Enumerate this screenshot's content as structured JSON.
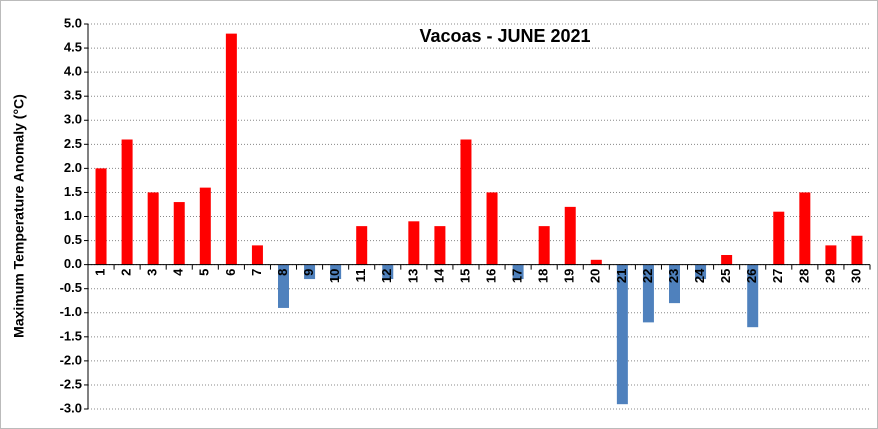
{
  "chart_data": {
    "type": "bar",
    "title": "Vacoas - JUNE 2021",
    "y_label": "Maximum  Temperature Anomaly (°C)",
    "categories": [
      "1",
      "2",
      "3",
      "4",
      "5",
      "6",
      "7",
      "8",
      "9",
      "10",
      "11",
      "12",
      "13",
      "14",
      "15",
      "16",
      "17",
      "18",
      "19",
      "20",
      "21",
      "22",
      "23",
      "24",
      "25",
      "26",
      "27",
      "28",
      "29",
      "30"
    ],
    "values": [
      2.0,
      2.6,
      1.5,
      1.3,
      1.6,
      4.8,
      0.4,
      -0.9,
      -0.3,
      -0.3,
      0.8,
      -0.3,
      0.9,
      0.8,
      2.6,
      1.5,
      -0.3,
      0.8,
      1.2,
      0.1,
      -2.9,
      -1.2,
      -0.8,
      -0.3,
      0.2,
      -1.3,
      1.1,
      1.5,
      0.4,
      0.6
    ],
    "positive_color": "#ff0000",
    "negative_color": "#4f81bd",
    "ylim": [
      -3,
      5
    ],
    "yticks": [
      {
        "value": 5,
        "label": "5.0"
      },
      4.5,
      {
        "value": 4,
        "label": "4.0"
      },
      3.5,
      {
        "value": 3,
        "label": "3.0"
      },
      2.5,
      {
        "value": 2,
        "label": "2.0"
      },
      1.5,
      {
        "value": 1,
        "label": "1.0"
      },
      0.5,
      {
        "value": 0,
        "label": "0.0"
      },
      -0.5,
      {
        "value": -1,
        "label": "-1.0"
      },
      -1.5,
      {
        "value": -2,
        "label": "-2.0"
      },
      -2.5,
      {
        "value": -3,
        "label": "-3.0"
      }
    ],
    "grid": true
  }
}
